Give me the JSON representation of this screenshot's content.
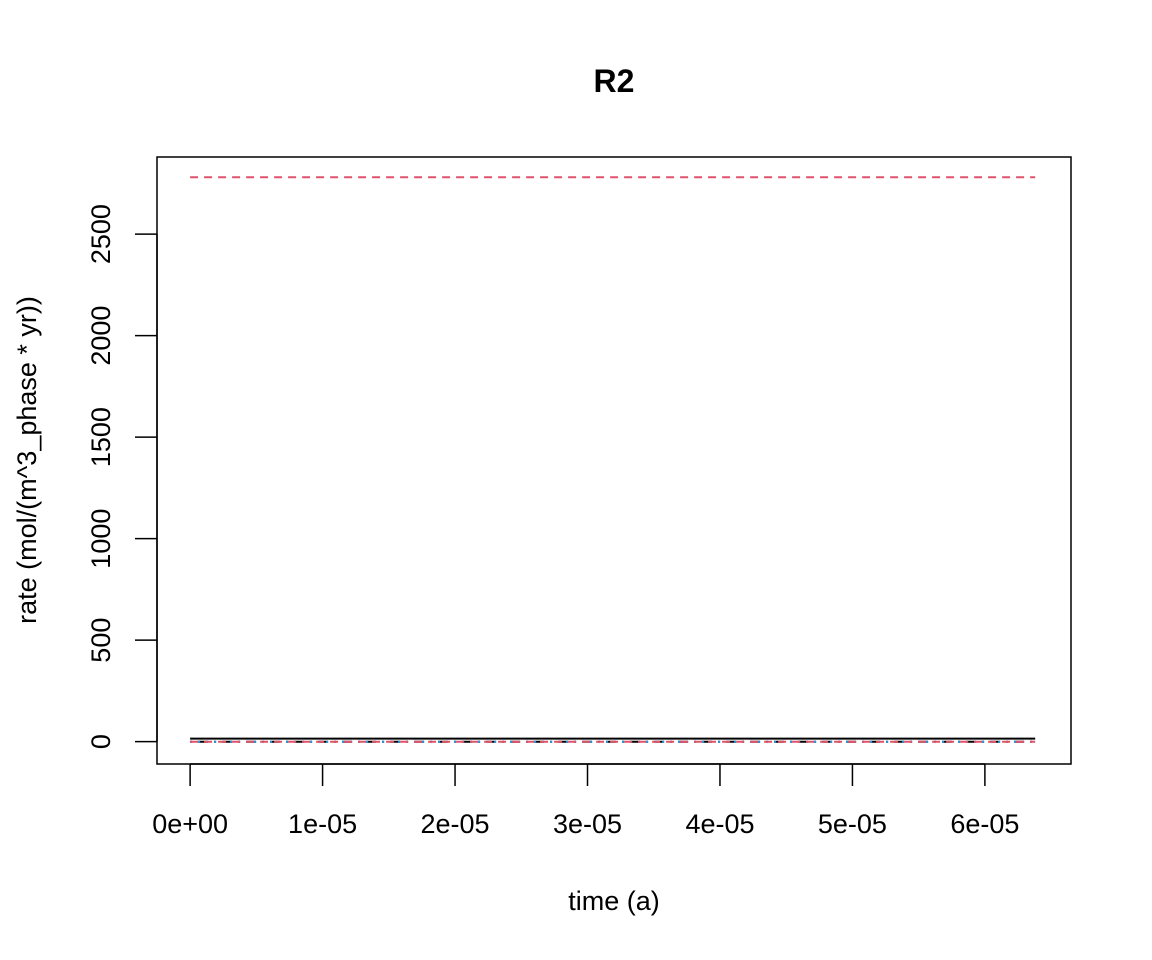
{
  "chart_data": {
    "type": "line",
    "title": "R2",
    "xlabel": "time (a)",
    "ylabel": "rate (mol/(m^3_phase * yr))",
    "xlim": [
      -2.5e-06,
      6.65e-05
    ],
    "ylim": [
      -110,
      2880
    ],
    "x_ticks": [
      0,
      1e-05,
      2e-05,
      3e-05,
      4e-05,
      5e-05,
      6e-05
    ],
    "x_tick_labels": [
      "0e+00",
      "1e-05",
      "2e-05",
      "3e-05",
      "4e-05",
      "5e-05",
      "6e-05"
    ],
    "y_ticks": [
      0,
      500,
      1000,
      1500,
      2000,
      2500
    ],
    "y_tick_labels": [
      "0",
      "500",
      "1000",
      "1500",
      "2000",
      "2500"
    ],
    "grid": false,
    "legend": "none",
    "series": [
      {
        "x": [
          0,
          6.38e-05
        ],
        "values": [
          2780,
          2780
        ],
        "color": "#DF536B",
        "dash": "dashed"
      },
      {
        "x": [
          0,
          6.38e-05
        ],
        "values": [
          15,
          15
        ],
        "color": "#000000",
        "dash": "solid"
      },
      {
        "x": [
          0,
          6.38e-05
        ],
        "values": [
          0,
          0
        ],
        "color": "#000000",
        "dash": "dotdash"
      },
      {
        "x": [
          0,
          6.38e-05
        ],
        "values": [
          0,
          0
        ],
        "color": "#2297E6",
        "dash": "dotted"
      },
      {
        "x": [
          0,
          6.38e-05
        ],
        "values": [
          0,
          0
        ],
        "color": "#DF536B",
        "dash": "dashed"
      }
    ]
  }
}
